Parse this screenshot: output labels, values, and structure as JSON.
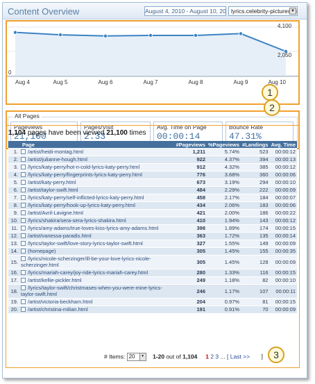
{
  "header": {
    "title": "Content Overview",
    "date_range": "August 4, 2010 - August 10, 2010",
    "site": "lyrics.celebrity-pictures.ca"
  },
  "chart_data": {
    "type": "area",
    "categories": [
      "Aug 4",
      "Aug 5",
      "Aug 6",
      "Aug 7",
      "Aug 8",
      "Aug 9",
      "Aug 10"
    ],
    "values": [
      3650,
      3450,
      3350,
      3400,
      3400,
      3550,
      2050
    ],
    "y_ticks": [
      "4,100",
      "2,050",
      "0"
    ],
    "ylim": [
      0,
      4100
    ],
    "series_color": "#3b82c4"
  },
  "callouts": [
    "1",
    "2",
    "3"
  ],
  "stats": {
    "legend": "All Pages",
    "items": [
      {
        "label": "Pageviews",
        "value": "21,100"
      },
      {
        "label": "Pages/Visit",
        "value": "2.33"
      },
      {
        "label": "Avg. Time on Page",
        "value": "00:00:14"
      },
      {
        "label": "Bounce Rate",
        "value": "47.31%"
      }
    ]
  },
  "summary": {
    "pages": "1,104",
    "mid": "pages have been viewed",
    "views": "21,100",
    "tail": "times"
  },
  "table": {
    "headers": [
      "",
      "Page",
      "#Pageviews",
      "%Pageviews",
      "#Landings",
      "Avg. Time"
    ],
    "rows": [
      [
        "1.",
        "/artist/heidi-montag.html",
        "1,211",
        "5.74%",
        "523",
        "00:00:12"
      ],
      [
        "2.",
        "/artist/julianne-hough.html",
        "922",
        "4.37%",
        "394",
        "00:00:13"
      ],
      [
        "3.",
        "/lyrics/katy-perry/hot-n-cold-lyrics-katy-perry.html",
        "912",
        "4.32%",
        "385",
        "00:00:12"
      ],
      [
        "4.",
        "/lyrics/katy-perry/fingerprints-lyrics-katy-perry.html",
        "776",
        "3.68%",
        "360",
        "00:00:06"
      ],
      [
        "5.",
        "/artist/katy-perry.html",
        "673",
        "3.19%",
        "294",
        "00:00:10"
      ],
      [
        "6.",
        "/artist/taylor-swift.html",
        "484",
        "2.29%",
        "222",
        "00:00:09"
      ],
      [
        "7.",
        "/lyrics/katy-perry/self-inflicted-lyrics-katy-perry.html",
        "458",
        "2.17%",
        "184",
        "00:00:07"
      ],
      [
        "8.",
        "/lyrics/katy-perry/hook-up-lyrics-katy-perry.html",
        "434",
        "2.06%",
        "183",
        "00:00:06"
      ],
      [
        "9.",
        "/artist/Avril-Lavigne.html",
        "421",
        "2.00%",
        "186",
        "00:00:22"
      ],
      [
        "10.",
        "/lyrics/shakira/sera-sera-lyrics-shakira.html",
        "410",
        "1.94%",
        "143",
        "00:00:12"
      ],
      [
        "11.",
        "/lyrics/amy-adams/true-loves-kiss-lyrics-amy-adams.html",
        "398",
        "1.89%",
        "174",
        "00:00:15"
      ],
      [
        "12.",
        "/artist/vanessa-paradis.html",
        "363",
        "1.72%",
        "135",
        "00:00:14"
      ],
      [
        "13.",
        "/lyrics/taylor-swift/love-story-lyrics-taylor-swift.html",
        "327",
        "1.55%",
        "149",
        "00:00:09"
      ],
      [
        "14.",
        "(homepage)",
        "305",
        "1.45%",
        "155",
        "00:00:35"
      ],
      [
        "15.",
        "/lyrics/nicole-scherzinger/ill-be-your-love-lyrics-nicole-scherzinger.html",
        "305",
        "1.45%",
        "128",
        "00:00:09"
      ],
      [
        "16.",
        "/lyrics/mariah-carey/joy-ride-lyrics-mariah-carey.html",
        "280",
        "1.33%",
        "116",
        "00:00:15"
      ],
      [
        "17.",
        "/artist/kellie-pickler.html",
        "249",
        "1.18%",
        "82",
        "00:00:10"
      ],
      [
        "18.",
        "/lyrics/taylor-swift/christmases-when-you-were-mine-lyrics-taylor-swift.html",
        "246",
        "1.17%",
        "107",
        "00:00:11"
      ],
      [
        "19.",
        "/artist/victoria-beckham.html",
        "204",
        "0.97%",
        "81",
        "00:00:15"
      ],
      [
        "20.",
        "/artist/christina-milian.html",
        "191",
        "0.91%",
        "70",
        "00:00:09"
      ]
    ]
  },
  "pager": {
    "items_label": "# Items:",
    "items_value": "20",
    "range": "1-20",
    "out_of": "out of",
    "total": "1,104",
    "current": "1",
    "p2": "2",
    "p3": "3",
    "ellipsis": "...",
    "last": "[ Last >>",
    "end": "]"
  }
}
